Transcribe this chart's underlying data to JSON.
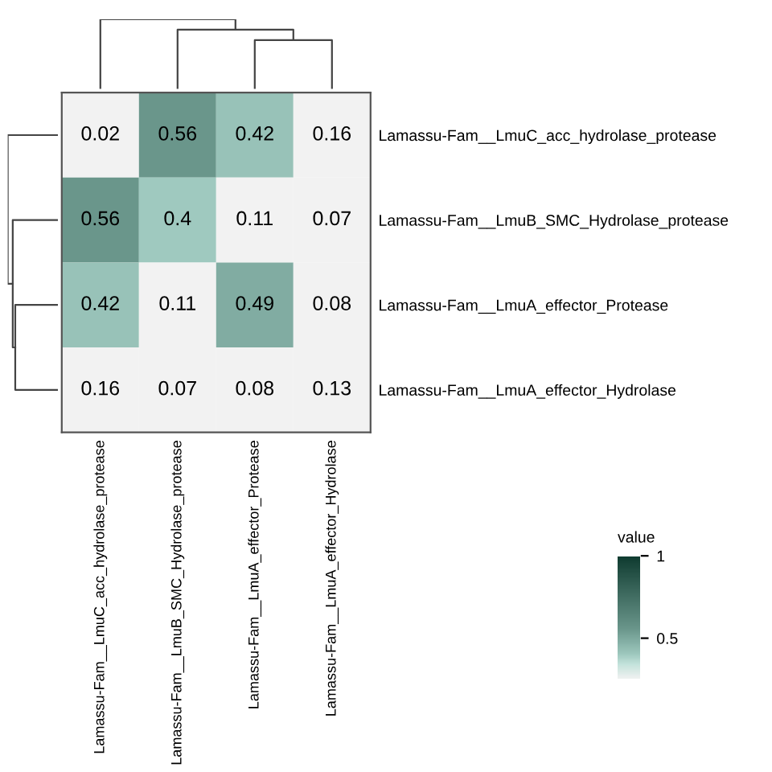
{
  "chart_data": {
    "type": "heatmap",
    "categories": [
      "Lamassu-Fam__LmuC_acc_hydrolase_protease",
      "Lamassu-Fam__LmuB_SMC_Hydrolase_protease",
      "Lamassu-Fam__LmuA_effector_Protease",
      "Lamassu-Fam__LmuA_effector_Hydrolase"
    ],
    "y_categories": [
      "Lamassu-Fam__LmuC_acc_hydrolase_protease",
      "Lamassu-Fam__LmuB_SMC_Hydrolase_protease",
      "Lamassu-Fam__LmuA_effector_Protease",
      "Lamassu-Fam__LmuA_effector_Hydrolase"
    ],
    "cells": [
      [
        0.02,
        0.56,
        0.42,
        0.16
      ],
      [
        0.56,
        0.4,
        0.11,
        0.07
      ],
      [
        0.42,
        0.11,
        0.49,
        0.08
      ],
      [
        0.16,
        0.07,
        0.08,
        0.13
      ]
    ],
    "data_labels": true,
    "legend_title": "value",
    "clim": [
      0.25,
      1
    ],
    "cticks": [
      0.5,
      1
    ]
  }
}
